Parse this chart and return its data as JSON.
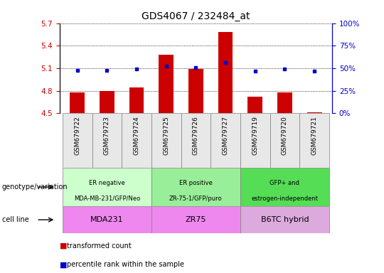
{
  "title": "GDS4067 / 232484_at",
  "samples": [
    "GSM679722",
    "GSM679723",
    "GSM679724",
    "GSM679725",
    "GSM679726",
    "GSM679727",
    "GSM679719",
    "GSM679720",
    "GSM679721"
  ],
  "red_values": [
    4.78,
    4.8,
    4.84,
    5.28,
    5.09,
    5.58,
    4.72,
    4.78,
    4.51
  ],
  "blue_values": [
    48,
    48,
    49,
    52,
    51,
    56,
    47,
    49,
    47
  ],
  "ylim_left": [
    4.5,
    5.7
  ],
  "ylim_right": [
    0,
    100
  ],
  "yticks_left": [
    4.5,
    4.8,
    5.1,
    5.4,
    5.7
  ],
  "yticks_right": [
    0,
    25,
    50,
    75,
    100
  ],
  "groups": [
    {
      "label": "ER negative\nMDA-MB-231/GFP/Neo",
      "start": 0,
      "end": 3,
      "color": "#ccffcc"
    },
    {
      "label": "ER positive\nZR-75-1/GFP/puro",
      "start": 3,
      "end": 6,
      "color": "#99ee99"
    },
    {
      "label": "GFP+ and\nestrogen-independent",
      "start": 6,
      "end": 9,
      "color": "#55dd55"
    }
  ],
  "cell_lines": [
    {
      "label": "MDA231",
      "start": 0,
      "end": 3,
      "color": "#ee88ee"
    },
    {
      "label": "ZR75",
      "start": 3,
      "end": 6,
      "color": "#ee88ee"
    },
    {
      "label": "B6TC hybrid",
      "start": 6,
      "end": 9,
      "color": "#ddaadd"
    }
  ],
  "bar_color": "#cc0000",
  "dot_color": "#0000cc",
  "tick_color_left": "#cc0000",
  "tick_color_right": "#0000cc",
  "background_color": "#ffffff",
  "bar_width": 0.5,
  "baseline": 4.5,
  "label_geno": "genotype/variation",
  "label_cell": "cell line",
  "legend_red": "transformed count",
  "legend_blue": "percentile rank within the sample"
}
